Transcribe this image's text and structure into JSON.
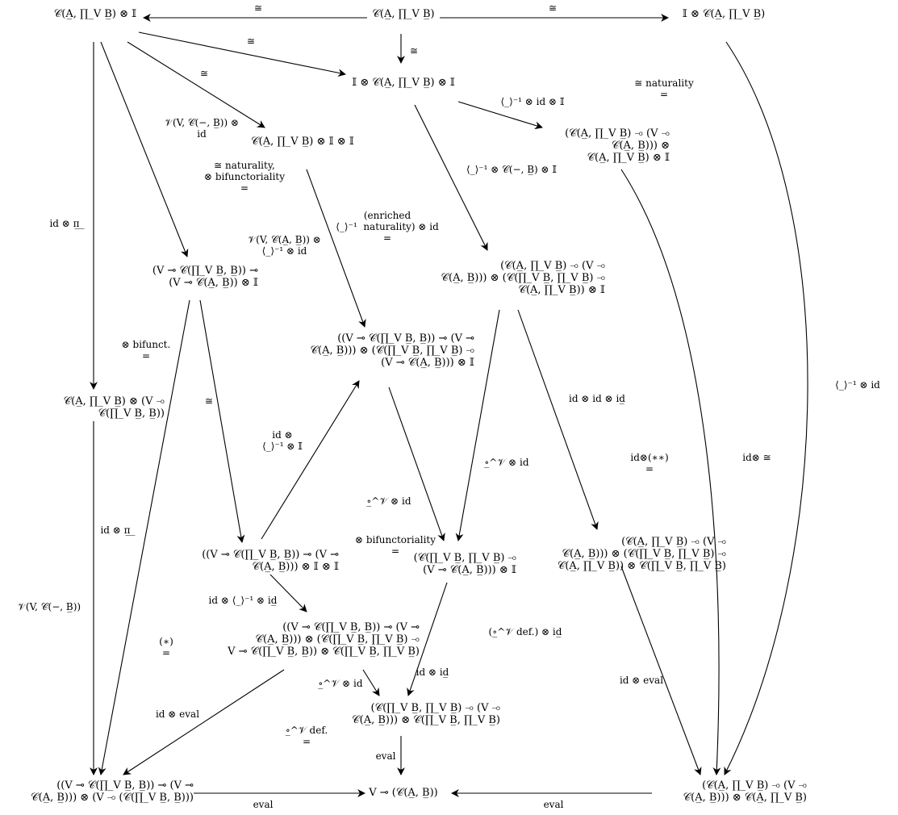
{
  "nodes": {
    "top_left": "𝒞(A̲, ∏_V B̲) ⊗ 𝕀",
    "top_mid": "𝒞(A̲, ∏_V B̲)",
    "top_right": "𝕀 ⊗ 𝒞(A̲, ∏_V B̲)",
    "mid_unit": "𝕀 ⊗ 𝒞(A̲, ∏_V B̲) ⊗ 𝕀",
    "n_II": "𝒞(A̲, ∏_V B̲) ⊗ 𝕀 ⊗ 𝕀",
    "n_right_upper": "(𝒞(A̲, ∏_V B̲) ⊸ (V ⊸\n𝒞(A̲, B̲))) ⊗\n𝒞(A̲, ∏_V B̲) ⊗ 𝕀",
    "n_left_mid": "(V ⊸ 𝒞(∏_V B̲, B̲)) ⊸\n(V ⊸ 𝒞(A̲, B̲)) ⊗ 𝕀",
    "n_center_right": "(𝒞(A̲, ∏_V B̲) ⊸ (V ⊸\n𝒞(A̲, B̲))) ⊗ (𝒞(∏_V B̲, ∏_V B̲) ⊸\n𝒞(A̲, ∏_V B̲)) ⊗ 𝕀",
    "n_center": "((V ⊸ 𝒞(∏_V B̲, B̲)) ⊸ (V ⊸\n𝒞(A̲, B̲))) ⊗ (𝒞(∏_V B̲, ∏_V B̲) ⊸\n(V ⊸ 𝒞(A̲, B̲))) ⊗ 𝕀",
    "n_left_lower": "𝒞(A̲, ∏_V B̲) ⊗ (V ⊸\n𝒞(∏_V B̲, B̲))",
    "n_left_II": "((V ⊸ 𝒞(∏_V B̲, B̲)) ⊸ (V ⊸\n𝒞(A̲, B̲))) ⊗ 𝕀 ⊗ 𝕀",
    "n_mid_lower": "(𝒞(∏_V B̲, ∏_V B̲) ⊸\n(V ⊸ 𝒞(A̲, B̲))) ⊗ 𝕀",
    "n_right_lower": "(𝒞(A̲, ∏_V B̲) ⊸ (V ⊸\n𝒞(A̲, B̲))) ⊗ (𝒞(∏_V B̲, ∏_V B̲) ⊸\n𝒞(A̲, ∏_V B̲)) ⊗ 𝒞(∏_V B̲, ∏_V B̲)",
    "n_center_low": "((V ⊸ 𝒞(∏_V B̲, B̲)) ⊸ (V ⊸\n𝒞(A̲, B̲))) ⊗ (𝒞(∏_V B̲, ∏_V B̲) ⊸\nV ⊸ 𝒞(∏_V B̲, B̲)) ⊗ 𝒞(∏_V B̲, ∏_V B̲)",
    "n_eval_src": "(𝒞(∏_V B̲, ∏_V B̲) ⊸ (V ⊸\n𝒞(A̲, B̲))) ⊗ 𝒞(∏_V B̲, ∏_V B̲)",
    "bottom_left": "((V ⊸ 𝒞(∏_V B̲, B̲)) ⊸ (V ⊸\n𝒞(A̲, B̲))) ⊗ (V ⊸ (𝒞(∏_V B̲, B̲)))",
    "bottom_mid": "V ⊸ (𝒞(A̲, B̲))",
    "bottom_right": "(𝒞(A̲, ∏_V B̲) ⊸ (V ⊸\n𝒞(A̲, B̲))) ⊗ 𝒞(A̲, ∏_V B̲)"
  },
  "labels": {
    "iso_top_left": "≅",
    "iso_top_right": "≅",
    "iso_down": "≅",
    "iso_diag1": "≅",
    "iso_diag2": "≅",
    "iso_naturality": "≅ naturality\n=",
    "bracket_id_I": "⟨_⟩⁻¹ ⊗ id ⊗ 𝕀",
    "bracket_C_I": "⟨_⟩⁻¹ ⊗ 𝒞(−, B̲) ⊗ 𝕀",
    "V_C_id": "𝒱(V, 𝒞(−, B̲)) ⊗\nid",
    "nat_bifunct": "≅ naturality,\n⊗ bifunctoriality\n=",
    "id_pi_top": "id ⊗ π̲_",
    "V_C_AB_bracket": "𝒱(V, 𝒞(A̲, B̲)) ⊗\n⟨_⟩⁻¹ ⊗ id",
    "enriched_nat": "(enriched\n⟨_⟩⁻¹  naturality) ⊗ id\n=",
    "bifunct_short": "⊗ bifunct.\n=",
    "iso_left_mid": "≅",
    "id_bracket_I": "id ⊗\n⟨_⟩⁻¹ ⊗ 𝕀",
    "circ_id_center": "∘̲^𝒱 ⊗ id",
    "circ_id_right": "∘̲^𝒱 ⊗ id",
    "id_id_id": "id ⊗ id ⊗ id̲",
    "id_star2": "id⊗(∗∗)\n=",
    "id_iso": "id⊗ ≅",
    "bracket_id_far": "⟨_⟩⁻¹ ⊗ id",
    "id_pi_lower": "id ⊗ π̲_",
    "bifunct_center": "⊗ bifunctoriality\n=",
    "V_C_left": "𝒱(V, 𝒞(−, B̲))",
    "id_bracket_id": "id ⊗ ⟨_⟩⁻¹ ⊗ id̲",
    "star1": "(∗)\n=",
    "circ_def_id": "(∘̲^𝒱 def.) ⊗ id̲",
    "circ_def_eq": "=",
    "id_idbar": "id ⊗ id̲",
    "circ_id_low": "∘̲^𝒱 ⊗ id",
    "id_eval_left": "id ⊗ eval",
    "id_eval_right": "id ⊗ eval",
    "circ_def": "∘̲^𝒱 def.\n=",
    "eval_down": "eval",
    "eval_bottom_left": "eval",
    "eval_bottom_right": "eval"
  }
}
